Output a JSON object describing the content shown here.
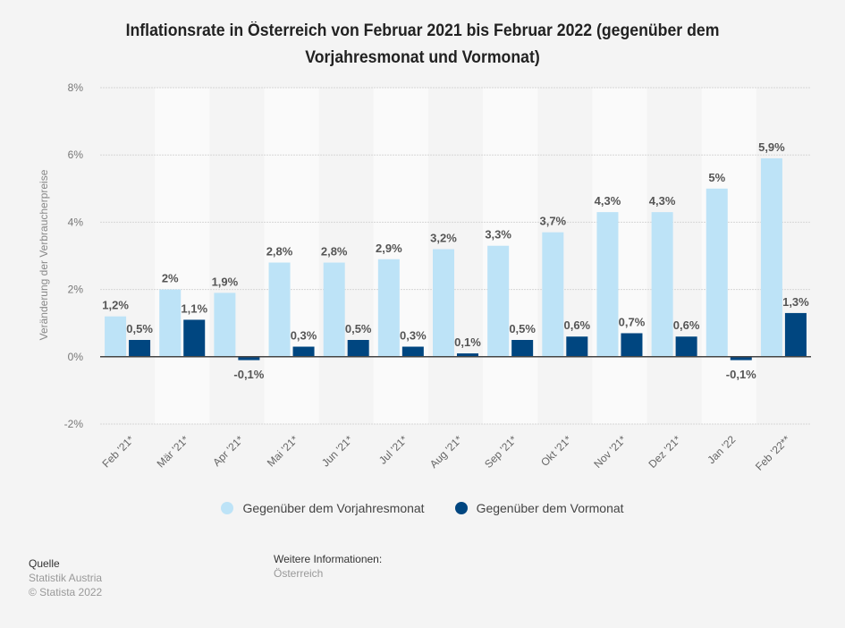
{
  "chart_data": {
    "type": "bar",
    "title": "Inflationsrate in Österreich von Februar 2021 bis Februar 2022 (gegenüber dem Vorjahresmonat und Vormonat)",
    "xlabel": "",
    "ylabel": "Veränderung der Verbraucherpreise",
    "ylim": [
      -2,
      8
    ],
    "yticks": [
      -2,
      0,
      2,
      4,
      6,
      8
    ],
    "ytick_labels": [
      "-2%",
      "0%",
      "2%",
      "4%",
      "6%",
      "8%"
    ],
    "grid": true,
    "legend_position": "bottom",
    "categories": [
      "Feb '21*",
      "Mär '21*",
      "Apr '21*",
      "Mai '21*",
      "Jun '21*",
      "Jul '21*",
      "Aug '21*",
      "Sep '21*",
      "Okt '21*",
      "Nov '21*",
      "Dez '21*",
      "Jan '22",
      "Feb '22**"
    ],
    "series": [
      {
        "name": "Gegenüber dem Vorjahresmonat",
        "color": "#bde3f7",
        "values": [
          1.2,
          2.0,
          1.9,
          2.8,
          2.8,
          2.9,
          3.2,
          3.3,
          3.7,
          4.3,
          4.3,
          5.0,
          5.9
        ],
        "labels": [
          "1,2%",
          "2%",
          "1,9%",
          "2,8%",
          "2,8%",
          "2,9%",
          "3,2%",
          "3,3%",
          "3,7%",
          "4,3%",
          "4,3%",
          "5%",
          "5,9%"
        ]
      },
      {
        "name": "Gegenüber dem Vormonat",
        "color": "#004680",
        "values": [
          0.5,
          1.1,
          -0.1,
          0.3,
          0.5,
          0.3,
          0.1,
          0.5,
          0.6,
          0.7,
          0.6,
          -0.1,
          1.3
        ],
        "labels": [
          "0,5%",
          "1,1%",
          "-0,1%",
          "0,3%",
          "0,5%",
          "0,3%",
          "0,1%",
          "0,5%",
          "0,6%",
          "0,7%",
          "0,6%",
          "-0,1%",
          "1,3%"
        ]
      }
    ]
  },
  "header": {
    "title": "Inflationsrate in Österreich von Februar 2021 bis Februar 2022 (gegenüber dem Vorjahresmonat und Vormonat)"
  },
  "legend": {
    "items": [
      {
        "label": "Gegenüber dem Vorjahresmonat",
        "color": "#bde3f7"
      },
      {
        "label": "Gegenüber dem Vormonat",
        "color": "#004680"
      }
    ]
  },
  "footer": {
    "source_heading": "Quelle",
    "source_name": "Statistik Austria",
    "copyright": "© Statista 2022",
    "info_heading": "Weitere Informationen:",
    "info_value": "Österreich"
  }
}
